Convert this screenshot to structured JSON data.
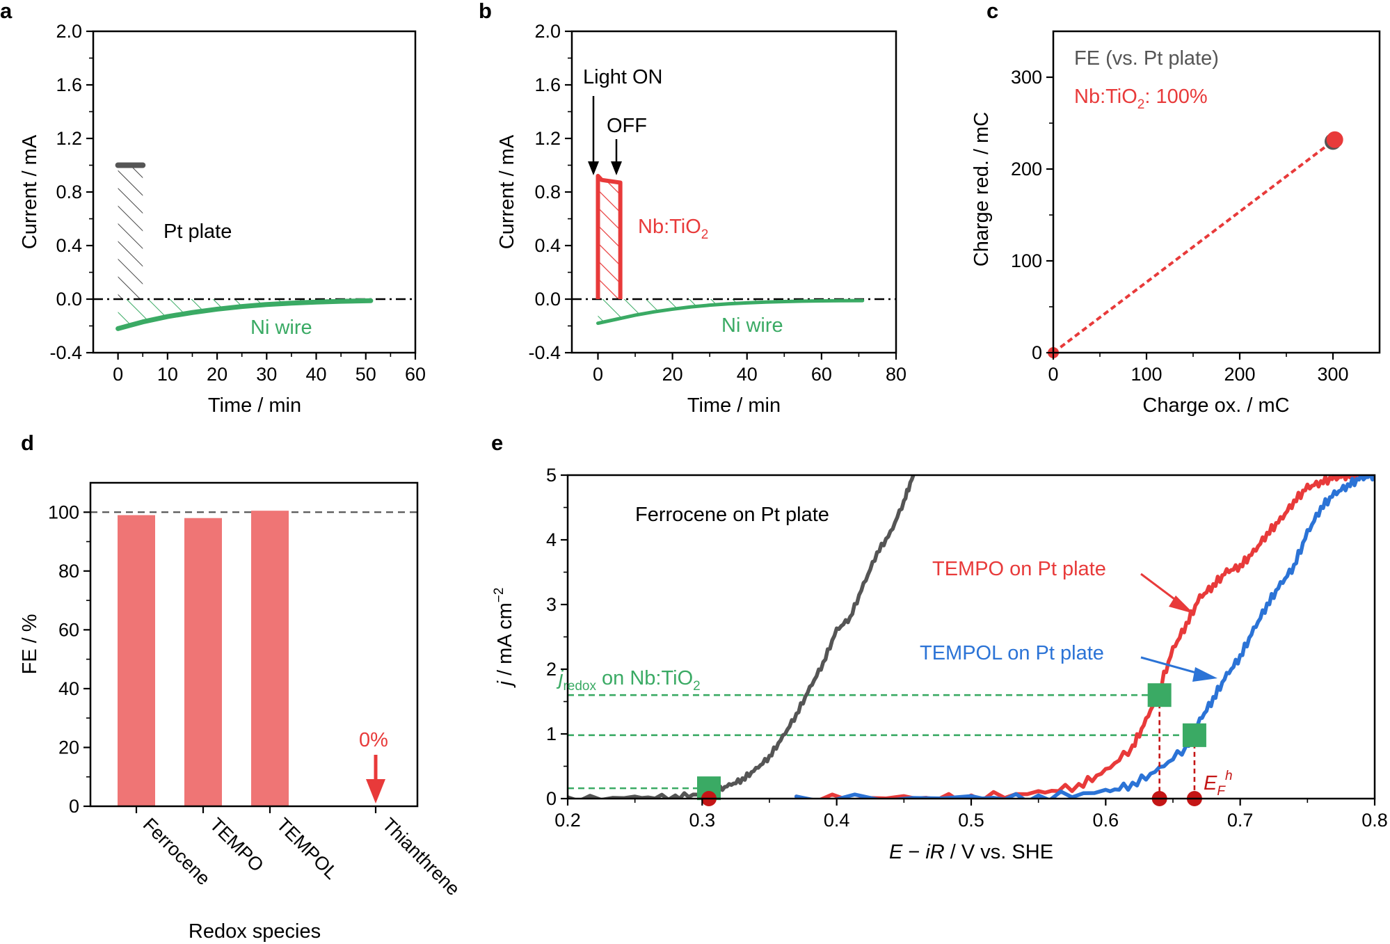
{
  "colors": {
    "pt_gray": "#555555",
    "nb_red": "#e83a3a",
    "ni_green": "#3aaa64",
    "tempol_blue": "#2b73d6",
    "bar_pink": "#ef7575",
    "ef_darkred": "#c41616",
    "square_green": "#3aaa64"
  },
  "chart_data": [
    {
      "panel": "a",
      "type": "line",
      "xlabel": "Time / min",
      "ylabel": "Current / mA",
      "xlim": [
        -5,
        60
      ],
      "ylim": [
        -0.4,
        2.0
      ],
      "xticks": [
        "0",
        "10",
        "20",
        "30",
        "40",
        "50",
        "60"
      ],
      "yticks": [
        "-0.4",
        "0.0",
        "0.4",
        "0.8",
        "1.2",
        "1.6",
        "2.0"
      ],
      "series": [
        {
          "name": "Pt plate",
          "color": "#555555",
          "x": [
            0,
            5
          ],
          "y": [
            1.0,
            1.0
          ],
          "hatched_area": true
        },
        {
          "name": "Ni wire",
          "color": "#3aaa64",
          "x": [
            0,
            2,
            5,
            10,
            15,
            20,
            25,
            30,
            35,
            40,
            45,
            51
          ],
          "y": [
            -0.22,
            -0.2,
            -0.17,
            -0.13,
            -0.1,
            -0.075,
            -0.055,
            -0.04,
            -0.03,
            -0.022,
            -0.016,
            -0.012
          ],
          "hatched_area": true
        }
      ],
      "annotations": [
        "Pt plate",
        "Ni wire"
      ]
    },
    {
      "panel": "b",
      "type": "line",
      "xlabel": "Time / min",
      "ylabel": "Current / mA",
      "xlim": [
        -7,
        80
      ],
      "ylim": [
        -0.4,
        2.0
      ],
      "xticks": [
        "0",
        "20",
        "40",
        "60",
        "80"
      ],
      "yticks": [
        "-0.4",
        "0.0",
        "0.4",
        "0.8",
        "1.2",
        "1.6",
        "2.0"
      ],
      "series": [
        {
          "name": "Nb:TiO2",
          "color": "#e83a3a",
          "x": [
            0,
            0,
            1,
            6,
            6
          ],
          "y": [
            0,
            0.92,
            0.89,
            0.87,
            0
          ],
          "hatched_area": true
        },
        {
          "name": "Ni wire",
          "color": "#3aaa64",
          "x": [
            0,
            5,
            10,
            15,
            20,
            25,
            30,
            35,
            40,
            45,
            50,
            55,
            60,
            65,
            71
          ],
          "y": [
            -0.18,
            -0.15,
            -0.12,
            -0.095,
            -0.075,
            -0.058,
            -0.045,
            -0.035,
            -0.028,
            -0.022,
            -0.018,
            -0.015,
            -0.013,
            -0.012,
            -0.011
          ],
          "hatched_area": true
        }
      ],
      "annotations": [
        "Light ON",
        "OFF",
        "Nb:TiO",
        "2",
        "Ni wire"
      ]
    },
    {
      "panel": "c",
      "type": "scatter",
      "xlabel": "Charge ox. / mC",
      "ylabel": "Charge red. / mC",
      "xlim": [
        0,
        350
      ],
      "ylim": [
        0,
        350
      ],
      "xticks": [
        "0",
        "100",
        "200",
        "300"
      ],
      "yticks": [
        "0",
        "100",
        "200",
        "300"
      ],
      "points": [
        {
          "name": "Pt plate",
          "color": "#555555",
          "x": [
            0,
            300
          ],
          "y": [
            0,
            230
          ]
        },
        {
          "name": "Nb:TiO2",
          "color": "#e83a3a",
          "x": [
            0,
            302
          ],
          "y": [
            0,
            232
          ]
        }
      ],
      "legend": {
        "title": "FE (vs. Pt plate)",
        "entry_prefix": "Nb:TiO",
        "entry_sub": "2",
        "entry_suffix": ": 100%"
      }
    },
    {
      "panel": "d",
      "type": "bar",
      "xlabel": "Redox species",
      "ylabel": "FE / %",
      "ylim": [
        0,
        110
      ],
      "yticks": [
        "0",
        "20",
        "40",
        "60",
        "80",
        "100"
      ],
      "categories": [
        "Ferrocene",
        "TEMPO",
        "TEMPOL",
        "Thianthrene"
      ],
      "values": [
        99,
        98,
        100.5,
        0
      ],
      "reference_line": 100,
      "annotations": [
        "0%"
      ]
    },
    {
      "panel": "e",
      "type": "line",
      "xlabel_parts": [
        "E",
        " − ",
        "iR",
        " / V vs. SHE"
      ],
      "ylabel_parts": [
        "j",
        " / mA cm",
        "−2"
      ],
      "xlim": [
        0.2,
        0.8
      ],
      "ylim": [
        0,
        5
      ],
      "xticks": [
        "0.2",
        "0.3",
        "0.4",
        "0.5",
        "0.6",
        "0.7",
        "0.8"
      ],
      "yticks": [
        "0",
        "1",
        "2",
        "3",
        "4",
        "5"
      ],
      "series": [
        {
          "name": "Ferrocene on Pt plate",
          "color": "#555555",
          "x": [
            0.2,
            0.25,
            0.28,
            0.3,
            0.31,
            0.32,
            0.33,
            0.34,
            0.35,
            0.36,
            0.37,
            0.38,
            0.39,
            0.4,
            0.41,
            0.42,
            0.43,
            0.44,
            0.45,
            0.457
          ],
          "y": [
            0.0,
            0.01,
            0.03,
            0.07,
            0.12,
            0.2,
            0.3,
            0.45,
            0.65,
            0.95,
            1.3,
            1.7,
            2.1,
            2.6,
            2.8,
            3.3,
            3.8,
            4.1,
            4.6,
            5.0
          ]
        },
        {
          "name": "TEMPO on Pt plate",
          "color": "#e83a3a",
          "x": [
            0.37,
            0.45,
            0.5,
            0.55,
            0.58,
            0.6,
            0.62,
            0.63,
            0.64,
            0.65,
            0.66,
            0.67,
            0.68,
            0.69,
            0.7,
            0.71,
            0.72,
            0.73,
            0.74,
            0.75,
            0.76,
            0.77,
            0.78,
            0.79,
            0.8
          ],
          "y": [
            0.0,
            0.005,
            0.02,
            0.08,
            0.2,
            0.42,
            0.8,
            1.2,
            1.7,
            2.3,
            2.7,
            3.1,
            3.3,
            3.5,
            3.6,
            3.8,
            4.1,
            4.3,
            4.6,
            4.8,
            4.9,
            4.95,
            5.0,
            5.0,
            5.0
          ]
        },
        {
          "name": "TEMPOL on Pt plate",
          "color": "#2b73d6",
          "x": [
            0.37,
            0.5,
            0.55,
            0.6,
            0.62,
            0.64,
            0.66,
            0.67,
            0.68,
            0.69,
            0.7,
            0.71,
            0.72,
            0.73,
            0.74,
            0.75,
            0.76,
            0.77,
            0.78,
            0.79,
            0.8
          ],
          "y": [
            0.0,
            0.005,
            0.02,
            0.1,
            0.22,
            0.45,
            0.8,
            1.2,
            1.55,
            1.9,
            2.2,
            2.6,
            3.0,
            3.3,
            3.6,
            4.1,
            4.5,
            4.7,
            4.85,
            4.95,
            5.0
          ]
        }
      ],
      "jredox_levels": [
        0.16,
        0.98,
        1.6
      ],
      "jredox_label": [
        "j",
        "redox",
        " on Nb:TiO",
        "2"
      ],
      "onset_points": [
        {
          "x": 0.305,
          "y": 0.16
        },
        {
          "x": 0.64,
          "y": 1.6
        },
        {
          "x": 0.666,
          "y": 0.98
        }
      ],
      "ef_label": [
        "E",
        "F",
        "h"
      ],
      "annotations": [
        "Ferrocene on Pt plate",
        "TEMPO on Pt plate",
        "TEMPOL on Pt plate"
      ]
    }
  ]
}
